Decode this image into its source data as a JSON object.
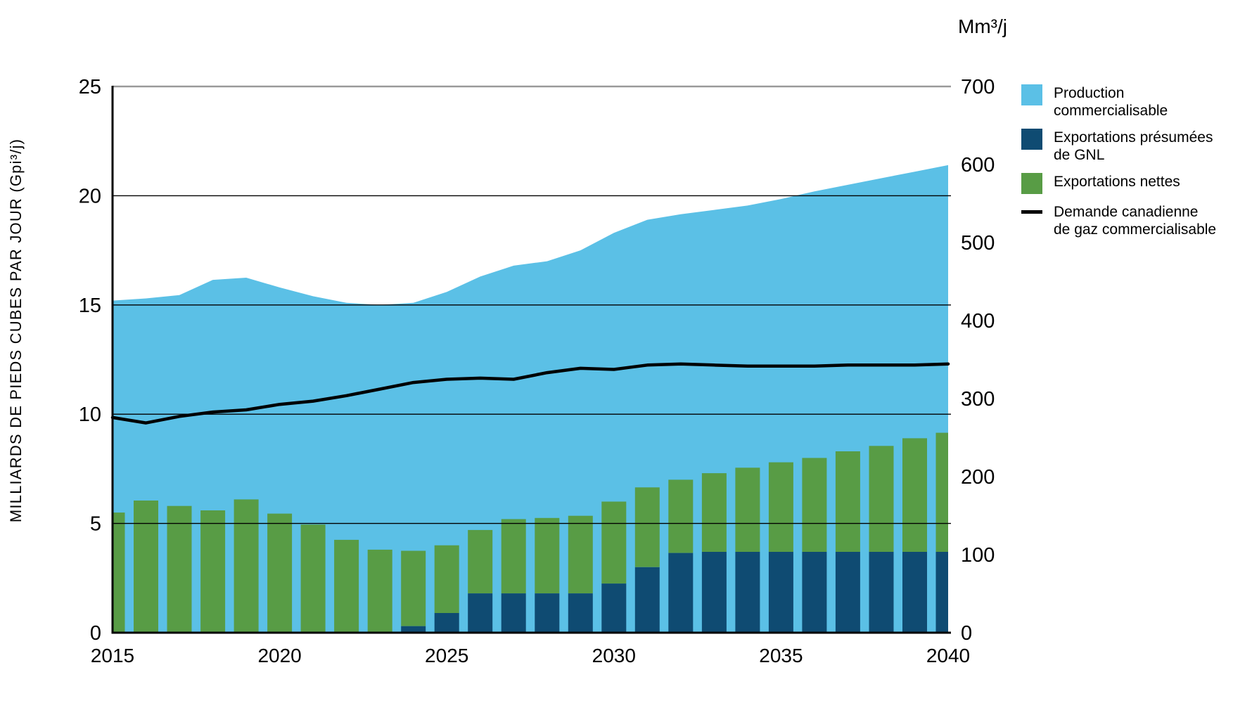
{
  "axes": {
    "left_title": "MILLIARDS DE PIEDS CUBES PAR JOUR (Gpi³/j)",
    "right_unit": "Mm³/j"
  },
  "legend": {
    "items": [
      {
        "line1": "Production",
        "line2": "commercialisable",
        "color": "#5BC0E6",
        "type": "area"
      },
      {
        "line1": "Exportations présumées",
        "line2": "de GNL",
        "color": "#0F4B72",
        "type": "bar"
      },
      {
        "line1": "Exportations nettes",
        "line2": "",
        "color": "#589C45",
        "type": "bar"
      },
      {
        "line1": "Demande canadienne",
        "line2": "de gaz commercialisable",
        "color": "#000000",
        "type": "line"
      }
    ]
  },
  "chart_data": {
    "type": "combo",
    "x": [
      2015,
      2016,
      2017,
      2018,
      2019,
      2020,
      2021,
      2022,
      2023,
      2024,
      2025,
      2026,
      2027,
      2028,
      2029,
      2030,
      2031,
      2032,
      2033,
      2034,
      2035,
      2036,
      2037,
      2038,
      2039,
      2040
    ],
    "x_tick_labels": [
      2015,
      2020,
      2025,
      2030,
      2035,
      2040
    ],
    "left_axis": {
      "label": "MILLIARDS DE PIEDS CUBES PAR JOUR (Gpi³/j)",
      "range": [
        0,
        25
      ],
      "ticks": [
        0,
        5,
        10,
        15,
        20,
        25
      ]
    },
    "right_axis": {
      "label": "Mm³/j",
      "range": [
        0,
        700
      ],
      "ticks": [
        0,
        100,
        200,
        300,
        400,
        500,
        600,
        700
      ]
    },
    "grid": "horizontal gridlines at left-axis ticks 5,10,15,20 (black thin) and 25 (grey)",
    "legend_position": "right",
    "series": [
      {
        "name": "Production commercialisable",
        "type": "area",
        "color": "#5BC0E6",
        "unit": "Gpi3/j",
        "values": [
          15.2,
          15.3,
          15.45,
          16.15,
          16.25,
          15.8,
          15.4,
          15.1,
          15.0,
          15.1,
          15.6,
          16.3,
          16.8,
          17.0,
          17.5,
          18.3,
          18.9,
          19.15,
          19.35,
          19.55,
          19.85,
          20.2,
          20.5,
          20.8,
          21.1,
          21.4
        ]
      },
      {
        "name": "Exportations présumées de GNL",
        "type": "bar",
        "color": "#0F4B72",
        "unit": "Gpi3/j",
        "stack": "exports",
        "values": [
          0,
          0,
          0,
          0,
          0,
          0,
          0,
          0,
          0,
          0.3,
          0.9,
          1.8,
          1.8,
          1.8,
          1.8,
          2.25,
          3.0,
          3.65,
          3.7,
          3.7,
          3.7,
          3.7,
          3.7,
          3.7,
          3.7,
          3.7
        ]
      },
      {
        "name": "Exportations nettes",
        "type": "bar",
        "color": "#589C45",
        "unit": "Gpi3/j",
        "stack": "exports",
        "values": [
          5.5,
          6.05,
          5.8,
          5.6,
          6.1,
          5.45,
          4.95,
          4.25,
          3.8,
          3.45,
          3.1,
          2.9,
          3.4,
          3.45,
          3.55,
          3.75,
          3.65,
          3.35,
          3.6,
          3.85,
          4.1,
          4.3,
          4.6,
          4.85,
          5.2,
          5.45
        ]
      },
      {
        "name": "Demande canadienne de gaz commercialisable",
        "type": "line",
        "color": "#000000",
        "unit": "Gpi3/j",
        "values": [
          9.85,
          9.6,
          9.9,
          10.1,
          10.2,
          10.45,
          10.6,
          10.85,
          11.15,
          11.45,
          11.6,
          11.65,
          11.6,
          11.9,
          12.1,
          12.05,
          12.25,
          12.3,
          12.25,
          12.2,
          12.2,
          12.2,
          12.25,
          12.25,
          12.25,
          12.3
        ]
      }
    ]
  },
  "style": {
    "grid_color": "#000000",
    "top_grid_color": "#999999",
    "axis_color": "#000000",
    "background": "#ffffff"
  }
}
